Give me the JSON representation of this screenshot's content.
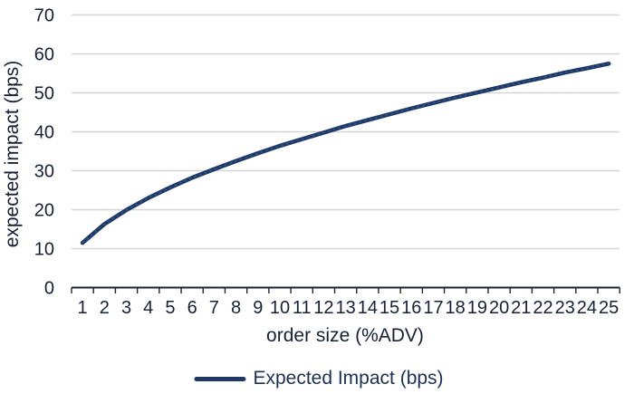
{
  "chart_data": {
    "type": "line",
    "title": "",
    "xlabel": "order size (%ADV)",
    "ylabel": "expected impact (bps)",
    "x": [
      1,
      2,
      3,
      4,
      5,
      6,
      7,
      8,
      9,
      10,
      11,
      12,
      13,
      14,
      15,
      16,
      17,
      18,
      19,
      20,
      21,
      22,
      23,
      24,
      25
    ],
    "series": [
      {
        "name": "Expected Impact (bps)",
        "values": [
          11.5,
          16.3,
          19.9,
          23.0,
          25.7,
          28.2,
          30.4,
          32.5,
          34.5,
          36.4,
          38.1,
          39.8,
          41.5,
          43.0,
          44.5,
          46.0,
          47.4,
          48.8,
          50.1,
          51.4,
          52.7,
          53.9,
          55.2,
          56.3,
          57.5
        ]
      }
    ],
    "ylim": [
      0,
      70
    ],
    "yticks": [
      0,
      10,
      20,
      30,
      40,
      50,
      60,
      70
    ],
    "grid": "horizontal-only",
    "legend_position": "bottom-center"
  },
  "axes": {
    "x_title": "order size (%ADV)",
    "y_title": "expected impact (bps)"
  },
  "legend": {
    "label": "Expected Impact (bps)"
  },
  "colors": {
    "line": "#1F3864",
    "line_texture": "#2E5994",
    "grid": "#D6D6D6",
    "axis": "#1D2330",
    "text": "#172036",
    "legend_text": "#1C3055",
    "background": "#FFFFFF"
  }
}
